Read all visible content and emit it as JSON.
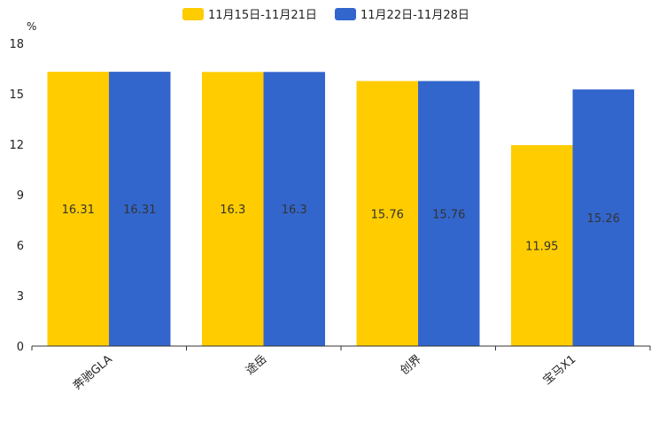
{
  "chart_data": {
    "type": "bar",
    "unit": "%",
    "categories": [
      "奔驰GLA",
      "途岳",
      "创界",
      "宝马X1"
    ],
    "series": [
      {
        "name": "11月15日-11月21日",
        "color": "#ffcc00",
        "values": [
          16.31,
          16.3,
          15.76,
          11.95
        ]
      },
      {
        "name": "11月22日-11月28日",
        "color": "#3366cc",
        "values": [
          16.31,
          16.3,
          15.76,
          15.26
        ]
      }
    ],
    "data_labels": [
      [
        "16.31",
        "16.3",
        "15.76",
        "11.95"
      ],
      [
        "16.31",
        "16.3",
        "15.76",
        "15.26"
      ]
    ],
    "yticks": [
      "0",
      "3",
      "6",
      "9",
      "12",
      "15",
      "18"
    ],
    "ylim": [
      0,
      18
    ],
    "legend": "top-center",
    "grid": false
  }
}
